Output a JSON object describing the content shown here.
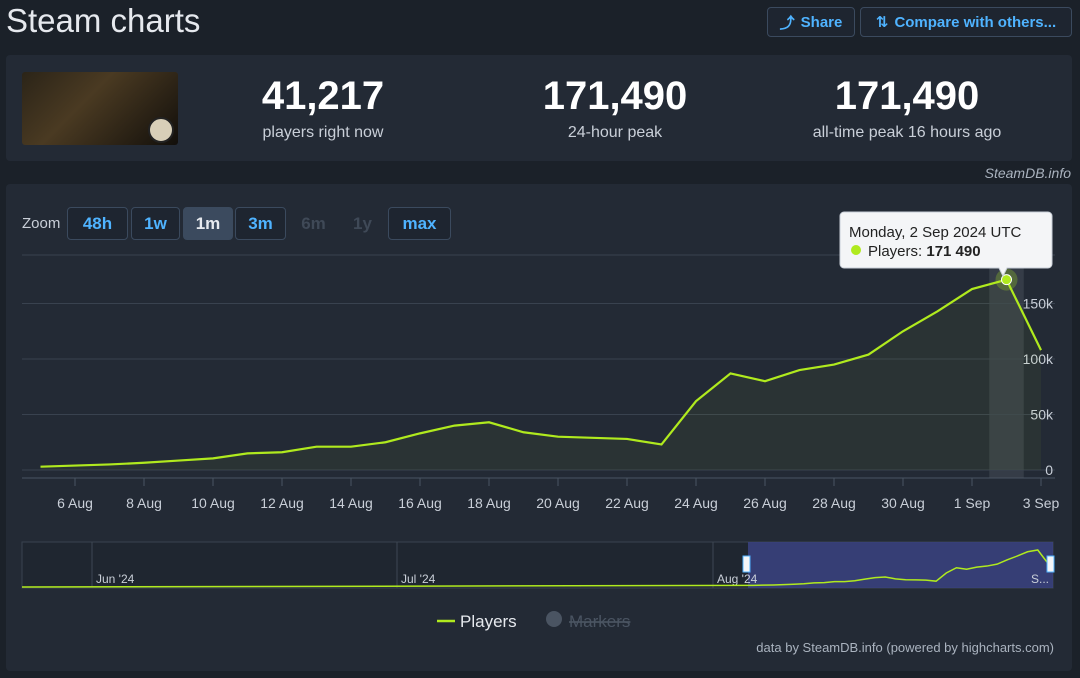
{
  "header": {
    "title": "Steam charts",
    "share": "Share",
    "compare": "Compare with others..."
  },
  "stats": [
    {
      "value": "41,217",
      "label": "players right now"
    },
    {
      "value": "171,490",
      "label": "24-hour peak"
    },
    {
      "value": "171,490",
      "label": "all-time peak 16 hours ago"
    }
  ],
  "source": "SteamDB.info",
  "zoom": {
    "label": "Zoom",
    "buttons": [
      "48h",
      "1w",
      "1m",
      "3m",
      "6m",
      "1y",
      "max"
    ],
    "active_index": 2,
    "disabled_indices": [
      4,
      5
    ]
  },
  "credits": "data by SteamDB.info (powered by highcharts.com)",
  "chart_data": {
    "type": "line",
    "categories": [
      null,
      "6 Aug",
      null,
      "8 Aug",
      null,
      "10 Aug",
      null,
      "12 Aug",
      null,
      "14 Aug",
      null,
      "16 Aug",
      null,
      "18 Aug",
      null,
      "20 Aug",
      null,
      "22 Aug",
      null,
      "24 Aug",
      null,
      "26 Aug",
      null,
      "28 Aug",
      null,
      "30 Aug",
      null,
      "1 Sep",
      null,
      "3 Sep"
    ],
    "series": [
      {
        "name": "Players",
        "color": "#b0ea1e",
        "values": [
          3000,
          4000,
          5000,
          6500,
          8500,
          10500,
          15000,
          16000,
          21000,
          21000,
          25000,
          33000,
          40000,
          43000,
          34000,
          30000,
          29000,
          28000,
          23000,
          62000,
          87000,
          80000,
          90000,
          95000,
          104000,
          125000,
          143000,
          163000,
          171490,
          108000
        ]
      }
    ],
    "inactive_legend": "Markers",
    "ylim": [
      0,
      200000
    ],
    "yticks": [
      {
        "value": 0,
        "label": "0"
      },
      {
        "value": 50000,
        "label": "50k"
      },
      {
        "value": 100000,
        "label": "100k"
      },
      {
        "value": 150000,
        "label": "150k"
      }
    ],
    "grid": true,
    "tooltip": {
      "index": 28,
      "title": "Monday, 2 Sep 2024 UTC",
      "label": "Players:",
      "value": "171 490"
    },
    "navigator": {
      "labels": [
        "Jun '24",
        "Jul '24",
        "Aug '24",
        "S..."
      ]
    }
  }
}
